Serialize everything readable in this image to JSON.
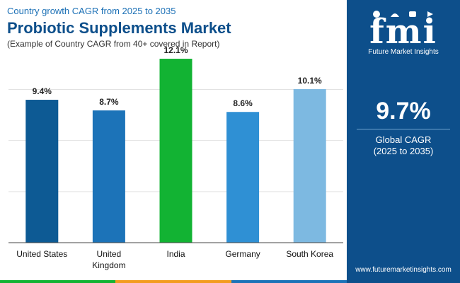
{
  "header": {
    "subtitle": "Country growth CAGR from 2025 to 2035",
    "title": "Probiotic Supplements Market",
    "note": "(Example of Country CAGR from 40+ covered in Report)"
  },
  "chart_data": {
    "type": "bar",
    "title": "Probiotic Supplements Market",
    "categories": [
      "United States",
      "United Kingdom",
      "India",
      "Germany",
      "South Korea"
    ],
    "category_lines": [
      [
        "United States"
      ],
      [
        "United",
        "Kingdom"
      ],
      [
        "India"
      ],
      [
        "Germany"
      ],
      [
        "South Korea"
      ]
    ],
    "values": [
      9.4,
      8.7,
      12.1,
      8.6,
      10.1
    ],
    "value_labels": [
      "9.4%",
      "8.7%",
      "12.1%",
      "8.6%",
      "10.1%"
    ],
    "colors": [
      "#0d5a94",
      "#1c73b8",
      "#12b333",
      "#2f90d4",
      "#7db9e1"
    ],
    "ylim": [
      0,
      12.8
    ],
    "grid": true,
    "xlabel": "",
    "ylabel": ""
  },
  "summary": {
    "value": "9.7%",
    "label_line1": "Global CAGR",
    "label_line2": "(2025 to 2035)"
  },
  "brand": {
    "letters": "fmi",
    "name": "Future Market Insights",
    "website": "www.futuremarketinsights.com"
  },
  "footer_colors": [
    "#12b333",
    "#f39c1f",
    "#1c73b8"
  ]
}
